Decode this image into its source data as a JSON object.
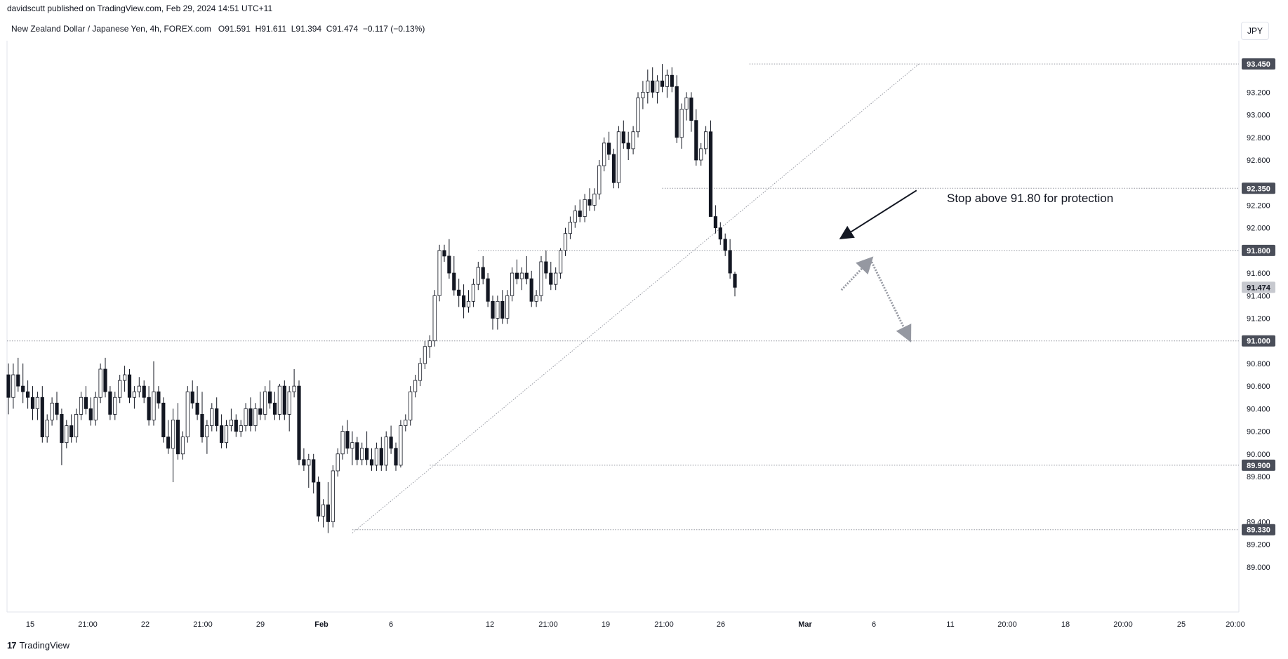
{
  "header": {
    "published_text": "davidscutt published on TradingView.com, Feb 29, 2024 14:51 UTC+11"
  },
  "symbol": {
    "name": "New Zealand Dollar / Japanese Yen, 4h, FOREX.com",
    "open_label": "O",
    "open": "91.591",
    "high_label": "H",
    "high": "91.611",
    "low_label": "L",
    "low": "91.394",
    "close_label": "C",
    "close": "91.474",
    "change": "−0.117 (−0.13%)"
  },
  "currency_button": {
    "label": "JPY"
  },
  "footer": {
    "brand": "TradingView",
    "logo_icon": "tradingview-logo-icon"
  },
  "chart_data": {
    "type": "candlestick",
    "ylim": [
      88.85,
      93.55
    ],
    "y_ticks": [
      "89.000",
      "89.200",
      "89.400",
      "89.800",
      "90.000",
      "90.200",
      "90.400",
      "90.600",
      "90.800",
      "91.200",
      "91.400",
      "91.600",
      "92.000",
      "92.200",
      "92.600",
      "92.800",
      "93.000",
      "93.200"
    ],
    "x_ticks": [
      "15",
      "21:00",
      "22",
      "21:00",
      "29",
      "Feb",
      "6",
      "12",
      "21:00",
      "19",
      "21:00",
      "26",
      "Mar",
      "6",
      "11",
      "20:00",
      "18",
      "20:00",
      "25",
      "20:00"
    ],
    "bold_x_ticks": [
      "Feb",
      "Mar"
    ],
    "price_labels": [
      {
        "value": 93.45,
        "text": "93.450",
        "style": "level"
      },
      {
        "value": 92.35,
        "text": "92.350",
        "style": "level"
      },
      {
        "value": 91.8,
        "text": "91.800",
        "style": "level"
      },
      {
        "value": 91.474,
        "text": "91.474",
        "style": "last"
      },
      {
        "value": 91.0,
        "text": "91.000",
        "style": "level"
      },
      {
        "value": 89.9,
        "text": "89.900",
        "style": "level"
      },
      {
        "value": 89.33,
        "text": "89.330",
        "style": "level"
      }
    ],
    "horizontal_levels": [
      {
        "value": 93.45,
        "from_bar": 153
      },
      {
        "value": 92.35,
        "from_bar": 135
      },
      {
        "value": 91.8,
        "from_bar": 97
      },
      {
        "value": 91.0,
        "from_bar": 0
      },
      {
        "value": 89.9,
        "from_bar": 87
      },
      {
        "value": 89.33,
        "from_bar": 71
      }
    ],
    "trendline": {
      "from": {
        "bar": 71,
        "value": 89.3
      },
      "to": {
        "bar": 188,
        "value": 93.45
      }
    },
    "annotation": {
      "text": "Stop above 91.80 for protection",
      "arrow_from": {
        "bar": 202,
        "value": 92.3
      },
      "arrow_to": {
        "bar": 180,
        "value": 91.85
      }
    },
    "projection": [
      {
        "bar": 172,
        "value": 91.45
      },
      {
        "bar": 178,
        "value": 91.72
      },
      {
        "bar": 186,
        "value": 91.02
      }
    ],
    "candles": [
      [
        90.7,
        90.8,
        90.35,
        90.5
      ],
      [
        90.5,
        90.8,
        90.4,
        90.7
      ],
      [
        90.7,
        90.85,
        90.55,
        90.6
      ],
      [
        90.6,
        90.8,
        90.45,
        90.55
      ],
      [
        90.55,
        90.65,
        90.4,
        90.5
      ],
      [
        90.5,
        90.6,
        90.3,
        90.4
      ],
      [
        90.4,
        90.55,
        90.3,
        90.5
      ],
      [
        90.5,
        90.6,
        90.1,
        90.15
      ],
      [
        90.15,
        90.35,
        90.1,
        90.3
      ],
      [
        90.3,
        90.5,
        90.25,
        90.45
      ],
      [
        90.45,
        90.55,
        90.3,
        90.35
      ],
      [
        90.35,
        90.4,
        89.9,
        90.1
      ],
      [
        90.1,
        90.3,
        90.05,
        90.25
      ],
      [
        90.25,
        90.35,
        90.1,
        90.15
      ],
      [
        90.15,
        90.4,
        90.1,
        90.35
      ],
      [
        90.35,
        90.55,
        90.3,
        90.5
      ],
      [
        90.5,
        90.6,
        90.35,
        90.4
      ],
      [
        90.4,
        90.5,
        90.25,
        90.3
      ],
      [
        90.3,
        90.55,
        90.25,
        90.5
      ],
      [
        90.5,
        90.8,
        90.45,
        90.75
      ],
      [
        90.75,
        90.85,
        90.5,
        90.55
      ],
      [
        90.55,
        90.6,
        90.3,
        90.35
      ],
      [
        90.35,
        90.55,
        90.3,
        90.5
      ],
      [
        90.5,
        90.7,
        90.45,
        90.65
      ],
      [
        90.65,
        90.78,
        90.55,
        90.7
      ],
      [
        90.7,
        90.75,
        90.45,
        90.5
      ],
      [
        90.5,
        90.6,
        90.4,
        90.55
      ],
      [
        90.55,
        90.68,
        90.5,
        90.6
      ],
      [
        90.6,
        90.65,
        90.45,
        90.5
      ],
      [
        90.5,
        90.6,
        90.25,
        90.3
      ],
      [
        90.3,
        90.82,
        90.25,
        90.55
      ],
      [
        90.55,
        90.6,
        90.4,
        90.45
      ],
      [
        90.45,
        90.5,
        90.1,
        90.15
      ],
      [
        90.15,
        90.3,
        90.0,
        90.05
      ],
      [
        90.05,
        90.4,
        89.75,
        90.3
      ],
      [
        90.3,
        90.45,
        89.95,
        90.0
      ],
      [
        90.0,
        90.2,
        89.95,
        90.15
      ],
      [
        90.15,
        90.6,
        90.1,
        90.55
      ],
      [
        90.55,
        90.65,
        90.4,
        90.45
      ],
      [
        90.45,
        90.6,
        90.3,
        90.35
      ],
      [
        90.35,
        90.55,
        90.1,
        90.15
      ],
      [
        90.15,
        90.3,
        90.0,
        90.25
      ],
      [
        90.25,
        90.45,
        90.2,
        90.4
      ],
      [
        90.4,
        90.5,
        90.2,
        90.25
      ],
      [
        90.25,
        90.35,
        90.05,
        90.1
      ],
      [
        90.1,
        90.3,
        90.05,
        90.25
      ],
      [
        90.25,
        90.4,
        90.2,
        90.3
      ],
      [
        90.3,
        90.35,
        90.15,
        90.2
      ],
      [
        90.2,
        90.3,
        90.15,
        90.25
      ],
      [
        90.25,
        90.45,
        90.2,
        90.4
      ],
      [
        90.4,
        90.5,
        90.2,
        90.25
      ],
      [
        90.25,
        90.45,
        90.2,
        90.4
      ],
      [
        90.4,
        90.55,
        90.3,
        90.35
      ],
      [
        90.35,
        90.6,
        90.3,
        90.55
      ],
      [
        90.55,
        90.65,
        90.4,
        90.45
      ],
      [
        90.45,
        90.55,
        90.3,
        90.35
      ],
      [
        90.35,
        90.62,
        90.3,
        90.6
      ],
      [
        90.6,
        90.65,
        90.3,
        90.35
      ],
      [
        90.35,
        90.6,
        90.2,
        90.55
      ],
      [
        90.55,
        90.75,
        90.5,
        90.6
      ],
      [
        90.6,
        90.65,
        89.9,
        89.95
      ],
      [
        89.95,
        90.05,
        89.85,
        89.9
      ],
      [
        89.9,
        90.0,
        89.7,
        89.95
      ],
      [
        89.95,
        90.0,
        89.65,
        89.75
      ],
      [
        89.75,
        89.8,
        89.4,
        89.45
      ],
      [
        89.45,
        89.6,
        89.35,
        89.55
      ],
      [
        89.55,
        89.75,
        89.3,
        89.4
      ],
      [
        89.4,
        89.9,
        89.35,
        89.85
      ],
      [
        89.85,
        90.05,
        89.8,
        90.0
      ],
      [
        90.0,
        90.25,
        89.95,
        90.2
      ],
      [
        90.2,
        90.3,
        90.0,
        90.05
      ],
      [
        90.05,
        90.2,
        89.9,
        90.1
      ],
      [
        90.1,
        90.15,
        89.9,
        89.95
      ],
      [
        89.95,
        90.1,
        89.9,
        90.05
      ],
      [
        90.05,
        90.2,
        89.9,
        89.95
      ],
      [
        89.95,
        90.05,
        89.85,
        89.9
      ],
      [
        89.9,
        90.1,
        89.85,
        90.05
      ],
      [
        90.05,
        90.15,
        89.85,
        89.9
      ],
      [
        89.9,
        90.2,
        89.85,
        90.15
      ],
      [
        90.15,
        90.25,
        90.0,
        90.05
      ],
      [
        90.05,
        90.1,
        89.85,
        89.9
      ],
      [
        89.9,
        90.3,
        89.88,
        90.25
      ],
      [
        90.25,
        90.35,
        90.2,
        90.3
      ],
      [
        90.3,
        90.6,
        90.25,
        90.55
      ],
      [
        90.55,
        90.7,
        90.5,
        90.65
      ],
      [
        90.65,
        90.85,
        90.6,
        90.8
      ],
      [
        90.8,
        91.0,
        90.75,
        90.95
      ],
      [
        90.95,
        91.05,
        90.85,
        91.0
      ],
      [
        91.0,
        91.45,
        90.95,
        91.4
      ],
      [
        91.4,
        91.85,
        91.35,
        91.8
      ],
      [
        91.8,
        91.85,
        91.7,
        91.75
      ],
      [
        91.75,
        91.9,
        91.55,
        91.6
      ],
      [
        91.6,
        91.75,
        91.4,
        91.45
      ],
      [
        91.45,
        91.55,
        91.3,
        91.4
      ],
      [
        91.4,
        91.5,
        91.2,
        91.3
      ],
      [
        91.3,
        91.45,
        91.25,
        91.35
      ],
      [
        91.35,
        91.55,
        91.3,
        91.5
      ],
      [
        91.5,
        91.7,
        91.45,
        91.65
      ],
      [
        91.65,
        91.75,
        91.5,
        91.55
      ],
      [
        91.55,
        91.6,
        91.3,
        91.35
      ],
      [
        91.35,
        91.4,
        91.1,
        91.2
      ],
      [
        91.2,
        91.4,
        91.1,
        91.35
      ],
      [
        91.35,
        91.45,
        91.15,
        91.2
      ],
      [
        91.2,
        91.45,
        91.15,
        91.4
      ],
      [
        91.4,
        91.65,
        91.35,
        91.6
      ],
      [
        91.6,
        91.72,
        91.5,
        91.55
      ],
      [
        91.55,
        91.65,
        91.45,
        91.6
      ],
      [
        91.6,
        91.75,
        91.5,
        91.55
      ],
      [
        91.55,
        91.62,
        91.3,
        91.35
      ],
      [
        91.35,
        91.45,
        91.3,
        91.4
      ],
      [
        91.4,
        91.75,
        91.35,
        91.7
      ],
      [
        91.7,
        91.8,
        91.55,
        91.6
      ],
      [
        91.6,
        91.7,
        91.45,
        91.5
      ],
      [
        91.5,
        91.65,
        91.45,
        91.6
      ],
      [
        91.6,
        91.82,
        91.55,
        91.8
      ],
      [
        91.8,
        92.0,
        91.75,
        91.95
      ],
      [
        91.95,
        92.1,
        91.9,
        92.05
      ],
      [
        92.05,
        92.2,
        92.0,
        92.15
      ],
      [
        92.15,
        92.25,
        92.05,
        92.1
      ],
      [
        92.1,
        92.3,
        92.05,
        92.25
      ],
      [
        92.25,
        92.35,
        92.15,
        92.2
      ],
      [
        92.2,
        92.35,
        92.15,
        92.3
      ],
      [
        92.3,
        92.6,
        92.25,
        92.55
      ],
      [
        92.55,
        92.8,
        92.5,
        92.75
      ],
      [
        92.75,
        92.85,
        92.6,
        92.65
      ],
      [
        92.65,
        92.7,
        92.35,
        92.4
      ],
      [
        92.4,
        92.9,
        92.35,
        92.85
      ],
      [
        92.85,
        92.95,
        92.7,
        92.75
      ],
      [
        92.75,
        92.85,
        92.6,
        92.7
      ],
      [
        92.7,
        92.9,
        92.65,
        92.85
      ],
      [
        92.85,
        93.2,
        92.8,
        93.15
      ],
      [
        93.15,
        93.3,
        93.05,
        93.2
      ],
      [
        93.2,
        93.4,
        93.1,
        93.3
      ],
      [
        93.3,
        93.42,
        93.15,
        93.2
      ],
      [
        93.2,
        93.35,
        93.1,
        93.3
      ],
      [
        93.3,
        93.45,
        93.2,
        93.25
      ],
      [
        93.25,
        93.4,
        93.15,
        93.35
      ],
      [
        93.35,
        93.42,
        93.2,
        93.25
      ],
      [
        93.25,
        93.35,
        92.75,
        92.8
      ],
      [
        92.8,
        93.1,
        92.7,
        93.05
      ],
      [
        93.05,
        93.2,
        92.95,
        93.15
      ],
      [
        93.15,
        93.2,
        92.85,
        92.95
      ],
      [
        92.95,
        93.05,
        92.55,
        92.6
      ],
      [
        92.6,
        92.75,
        92.55,
        92.7
      ],
      [
        92.7,
        92.9,
        92.65,
        92.85
      ],
      [
        92.85,
        92.95,
        92.1,
        92.1
      ],
      [
        92.1,
        92.2,
        91.95,
        92.0
      ],
      [
        92.0,
        92.05,
        91.85,
        91.9
      ],
      [
        91.9,
        91.95,
        91.75,
        91.8
      ],
      [
        91.8,
        91.9,
        91.55,
        91.6
      ],
      [
        91.591,
        91.611,
        91.394,
        91.474
      ]
    ]
  }
}
